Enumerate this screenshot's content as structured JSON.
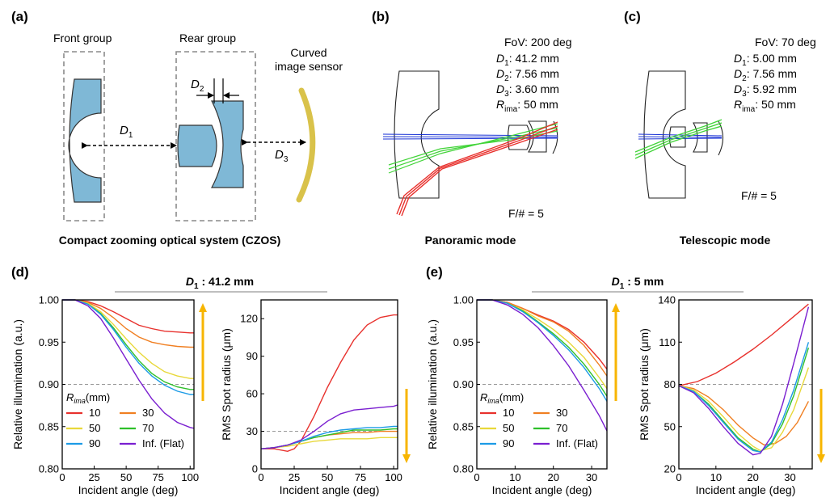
{
  "panels": {
    "a": {
      "tag": "(a)",
      "front_group": "Front group",
      "rear_group": "Rear group",
      "sensor_line1": "Curved",
      "sensor_line2": "image sensor",
      "d1": "D",
      "d1_sub": "1",
      "d2": "D",
      "d2_sub": "2",
      "d3": "D",
      "d3_sub": "3",
      "caption": "Compact zooming optical system (CZOS)"
    },
    "b": {
      "tag": "(b)",
      "fov": "FoV: 200 deg",
      "params": [
        {
          "sym": "D",
          "sub": "1",
          "val": ": 41.2 mm"
        },
        {
          "sym": "D",
          "sub": "2",
          "val": ": 7.56 mm"
        },
        {
          "sym": "D",
          "sub": "3",
          "val": ": 3.60 mm"
        },
        {
          "sym": "R",
          "sub": "ima",
          "val": ": 50 mm"
        }
      ],
      "fnum": "F/# = 5",
      "caption": "Panoramic mode"
    },
    "c": {
      "tag": "(c)",
      "fov": "FoV: 70 deg",
      "params": [
        {
          "sym": "D",
          "sub": "1",
          "val": ": 5.00 mm"
        },
        {
          "sym": "D",
          "sub": "2",
          "val": ": 7.56 mm"
        },
        {
          "sym": "D",
          "sub": "3",
          "val": ": 5.92 mm"
        },
        {
          "sym": "R",
          "sub": "ima",
          "val": ": 50 mm"
        }
      ],
      "fnum": "F/# = 5",
      "caption": "Telescopic mode"
    },
    "d": {
      "tag": "(d)",
      "header_sym": "D",
      "header_sub": "1",
      "header_val": " : 41.2 mm"
    },
    "e": {
      "tag": "(e)",
      "header_sym": "D",
      "header_sub": "1",
      "header_val": " : 5 mm"
    }
  },
  "legend": {
    "title_sym": "R",
    "title_sub": "ima",
    "title_unit": "(mm)",
    "entries": [
      {
        "label": "10",
        "color": "#e8312d"
      },
      {
        "label": "30",
        "color": "#f07f22"
      },
      {
        "label": "50",
        "color": "#e8d83a"
      },
      {
        "label": "70",
        "color": "#2ec02a"
      },
      {
        "label": "90",
        "color": "#1c9be6"
      },
      {
        "label": "Inf. (Flat)",
        "color": "#7a1fd0"
      }
    ]
  },
  "colors": {
    "arrow": "#f7b500",
    "lens_fill": "#7fb8d6",
    "sensor": "#d9c24a",
    "ray_red": "#e8312d",
    "ray_green": "#43d43a",
    "ray_blue": "#1a33d6"
  },
  "chart_data": [
    {
      "id": "d-illum",
      "type": "line",
      "xlabel": "Incident angle (deg)",
      "ylabel": "Relative illumination (a.u.)",
      "xlim": [
        0,
        103
      ],
      "ylim": [
        0.8,
        1.0
      ],
      "xticks": [
        0,
        25,
        50,
        75,
        100
      ],
      "yticks": [
        0.8,
        0.85,
        0.9,
        0.95,
        1.0
      ],
      "ytick_labels": [
        "0.80",
        "0.85",
        "0.90",
        "0.95",
        "1.00"
      ],
      "ref_line": 0.9,
      "arrow": "up",
      "series": [
        {
          "name": "10",
          "color": "#e8312d",
          "x": [
            0,
            10,
            20,
            30,
            40,
            50,
            60,
            70,
            80,
            90,
            100,
            103
          ],
          "y": [
            1.0,
            1.0,
            0.998,
            0.993,
            0.986,
            0.978,
            0.97,
            0.966,
            0.963,
            0.962,
            0.961,
            0.961
          ]
        },
        {
          "name": "30",
          "color": "#f07f22",
          "x": [
            0,
            10,
            20,
            30,
            40,
            50,
            60,
            70,
            80,
            90,
            100,
            103
          ],
          "y": [
            1.0,
            1.0,
            0.997,
            0.99,
            0.979,
            0.966,
            0.956,
            0.95,
            0.947,
            0.945,
            0.944,
            0.944
          ]
        },
        {
          "name": "50",
          "color": "#e8d83a",
          "x": [
            0,
            10,
            20,
            30,
            40,
            50,
            60,
            70,
            80,
            90,
            100,
            103
          ],
          "y": [
            1.0,
            1.0,
            0.996,
            0.986,
            0.971,
            0.954,
            0.938,
            0.925,
            0.915,
            0.91,
            0.907,
            0.907
          ]
        },
        {
          "name": "70",
          "color": "#2ec02a",
          "x": [
            0,
            10,
            20,
            30,
            40,
            50,
            60,
            70,
            80,
            90,
            100,
            103
          ],
          "y": [
            1.0,
            1.0,
            0.995,
            0.984,
            0.967,
            0.947,
            0.928,
            0.913,
            0.903,
            0.897,
            0.894,
            0.894
          ]
        },
        {
          "name": "90",
          "color": "#1c9be6",
          "x": [
            0,
            10,
            20,
            30,
            40,
            50,
            60,
            70,
            80,
            90,
            100,
            103
          ],
          "y": [
            1.0,
            1.0,
            0.995,
            0.983,
            0.965,
            0.944,
            0.925,
            0.91,
            0.899,
            0.892,
            0.888,
            0.888
          ]
        },
        {
          "name": "Inf. (Flat)",
          "color": "#7a1fd0",
          "x": [
            0,
            10,
            20,
            30,
            40,
            50,
            60,
            70,
            80,
            90,
            100,
            103
          ],
          "y": [
            1.0,
            1.0,
            0.993,
            0.978,
            0.955,
            0.93,
            0.905,
            0.883,
            0.866,
            0.855,
            0.849,
            0.848
          ]
        }
      ]
    },
    {
      "id": "d-spot",
      "type": "line",
      "xlabel": "Incident angle (deg)",
      "ylabel": "RMS Spot radius (μm)",
      "xlim": [
        0,
        103
      ],
      "ylim": [
        0,
        135
      ],
      "xticks": [
        0,
        25,
        50,
        75,
        100
      ],
      "yticks": [
        0,
        30,
        60,
        90,
        120
      ],
      "ytick_labels": [
        "0",
        "30",
        "60",
        "90",
        "120"
      ],
      "ref_line": 30,
      "arrow": "down",
      "series": [
        {
          "name": "10",
          "color": "#e8312d",
          "x": [
            0,
            10,
            20,
            25,
            30,
            40,
            50,
            60,
            70,
            80,
            90,
            100,
            103
          ],
          "y": [
            16,
            16,
            14,
            16,
            22,
            42,
            65,
            85,
            103,
            115,
            121,
            123,
            123
          ]
        },
        {
          "name": "30",
          "color": "#f07f22",
          "x": [
            0,
            10,
            20,
            30,
            40,
            50,
            60,
            70,
            80,
            90,
            100,
            103
          ],
          "y": [
            16,
            17,
            19,
            22,
            25,
            27,
            28,
            29,
            29,
            30,
            30,
            30
          ]
        },
        {
          "name": "50",
          "color": "#e8d83a",
          "x": [
            0,
            10,
            20,
            30,
            40,
            50,
            60,
            70,
            80,
            90,
            100,
            103
          ],
          "y": [
            16,
            17,
            18,
            20,
            22,
            23,
            24,
            24,
            24,
            25,
            25,
            25
          ]
        },
        {
          "name": "70",
          "color": "#2ec02a",
          "x": [
            0,
            10,
            20,
            30,
            40,
            50,
            60,
            70,
            80,
            90,
            100,
            103
          ],
          "y": [
            16,
            17,
            19,
            22,
            25,
            27,
            29,
            31,
            31,
            31,
            32,
            32
          ]
        },
        {
          "name": "90",
          "color": "#1c9be6",
          "x": [
            0,
            10,
            20,
            30,
            40,
            50,
            60,
            70,
            80,
            90,
            100,
            103
          ],
          "y": [
            16,
            17,
            19,
            22,
            26,
            29,
            31,
            32,
            33,
            33,
            34,
            34
          ]
        },
        {
          "name": "Inf. (Flat)",
          "color": "#7a1fd0",
          "x": [
            0,
            10,
            20,
            30,
            40,
            50,
            60,
            70,
            80,
            90,
            100,
            103
          ],
          "y": [
            16,
            17,
            19,
            23,
            30,
            38,
            44,
            47,
            48,
            49,
            50,
            51
          ]
        }
      ]
    },
    {
      "id": "e-illum",
      "type": "line",
      "xlabel": "Incident angle (deg)",
      "ylabel": "Relative illumination (a.u.)",
      "xlim": [
        0,
        34
      ],
      "ylim": [
        0.8,
        1.0
      ],
      "xticks": [
        0,
        10,
        20,
        30
      ],
      "yticks": [
        0.8,
        0.85,
        0.9,
        0.95,
        1.0
      ],
      "ytick_labels": [
        "0.80",
        "0.85",
        "0.90",
        "0.95",
        "1.00"
      ],
      "ref_line": 0.9,
      "arrow": "up",
      "series": [
        {
          "name": "10",
          "color": "#e8312d",
          "x": [
            0,
            4,
            8,
            12,
            16,
            20,
            24,
            28,
            32,
            34
          ],
          "y": [
            1.0,
            1.0,
            0.997,
            0.99,
            0.982,
            0.975,
            0.965,
            0.95,
            0.93,
            0.918
          ]
        },
        {
          "name": "30",
          "color": "#f07f22",
          "x": [
            0,
            4,
            8,
            12,
            16,
            20,
            24,
            28,
            32,
            34
          ],
          "y": [
            1.0,
            1.0,
            0.997,
            0.99,
            0.981,
            0.974,
            0.963,
            0.946,
            0.923,
            0.91
          ]
        },
        {
          "name": "50",
          "color": "#e8d83a",
          "x": [
            0,
            4,
            8,
            12,
            16,
            20,
            24,
            28,
            32,
            34
          ],
          "y": [
            1.0,
            1.0,
            0.996,
            0.988,
            0.977,
            0.965,
            0.95,
            0.932,
            0.908,
            0.895
          ]
        },
        {
          "name": "70",
          "color": "#2ec02a",
          "x": [
            0,
            4,
            8,
            12,
            16,
            20,
            24,
            28,
            32,
            34
          ],
          "y": [
            1.0,
            1.0,
            0.996,
            0.987,
            0.974,
            0.96,
            0.944,
            0.924,
            0.9,
            0.886
          ]
        },
        {
          "name": "90",
          "color": "#1c9be6",
          "x": [
            0,
            4,
            8,
            12,
            16,
            20,
            24,
            28,
            32,
            34
          ],
          "y": [
            1.0,
            1.0,
            0.996,
            0.986,
            0.973,
            0.958,
            0.941,
            0.92,
            0.895,
            0.88
          ]
        },
        {
          "name": "Inf. (Flat)",
          "color": "#7a1fd0",
          "x": [
            0,
            4,
            8,
            12,
            16,
            20,
            24,
            28,
            32,
            34
          ],
          "y": [
            1.0,
            1.0,
            0.994,
            0.983,
            0.967,
            0.946,
            0.922,
            0.893,
            0.863,
            0.845
          ]
        }
      ]
    },
    {
      "id": "e-spot",
      "type": "line",
      "xlabel": "Incident angle (deg)",
      "ylabel": "RMS Spot radius (μm)",
      "xlim": [
        0,
        36
      ],
      "ylim": [
        20,
        140
      ],
      "xticks": [
        0,
        10,
        20,
        30
      ],
      "yticks": [
        20,
        50,
        80,
        110,
        140
      ],
      "ytick_labels": [
        "20",
        "50",
        "80",
        "110",
        "140"
      ],
      "ref_line": 80,
      "arrow": "down",
      "series": [
        {
          "name": "10",
          "color": "#e8312d",
          "x": [
            0,
            5,
            10,
            15,
            20,
            25,
            30,
            35
          ],
          "y": [
            79,
            82,
            88,
            96,
            105,
            115,
            126,
            137
          ]
        },
        {
          "name": "30",
          "color": "#f07f22",
          "x": [
            0,
            4,
            8,
            12,
            16,
            20,
            23,
            26,
            29,
            32,
            35
          ],
          "y": [
            79,
            77,
            71,
            62,
            51,
            42,
            37,
            38,
            43,
            53,
            68
          ]
        },
        {
          "name": "50",
          "color": "#e8d83a",
          "x": [
            0,
            4,
            8,
            12,
            16,
            20,
            22,
            25,
            28,
            31,
            35
          ],
          "y": [
            79,
            76,
            68,
            57,
            45,
            36,
            33,
            35,
            46,
            62,
            92
          ]
        },
        {
          "name": "70",
          "color": "#2ec02a",
          "x": [
            0,
            4,
            8,
            12,
            16,
            20,
            22,
            25,
            28,
            31,
            35
          ],
          "y": [
            79,
            75,
            66,
            54,
            42,
            34,
            32,
            38,
            52,
            72,
            106
          ]
        },
        {
          "name": "90",
          "color": "#1c9be6",
          "x": [
            0,
            4,
            8,
            12,
            16,
            20,
            22,
            25,
            28,
            31,
            35
          ],
          "y": [
            79,
            75,
            65,
            53,
            41,
            33,
            32,
            39,
            55,
            76,
            110
          ]
        },
        {
          "name": "Inf. (Flat)",
          "color": "#7a1fd0",
          "x": [
            0,
            4,
            8,
            12,
            16,
            20,
            22,
            25,
            28,
            31,
            35
          ],
          "y": [
            79,
            74,
            63,
            50,
            38,
            30,
            31,
            43,
            66,
            95,
            135
          ]
        }
      ]
    }
  ]
}
